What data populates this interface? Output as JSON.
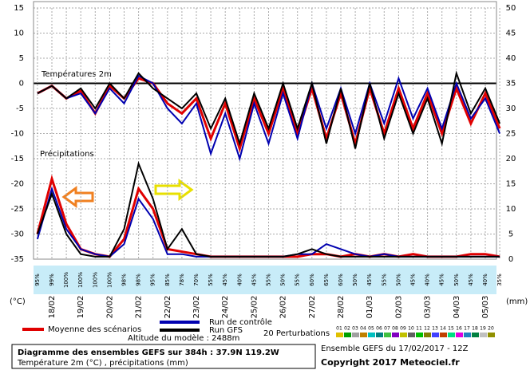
{
  "chart_data": {
    "type": "line",
    "annotations": [
      "Températures 2m",
      "Précipitations"
    ],
    "y_unit": "(°C)",
    "y2_unit": "(mm)",
    "categories": [
      null,
      "18/02",
      null,
      "19/02",
      null,
      "20/02",
      null,
      "21/02",
      null,
      "22/02",
      null,
      "23/02",
      null,
      "24/02",
      null,
      "25/02",
      null,
      "26/02",
      null,
      "27/02",
      null,
      "28/02",
      null,
      "01/03",
      null,
      "02/03",
      null,
      "03/03",
      null,
      "04/03",
      null,
      "05/03",
      null
    ],
    "probabilities": [
      "95%",
      "99%",
      "100%",
      "100%",
      "100%",
      "100%",
      "98%",
      "98%",
      "95%",
      "85%",
      "78%",
      "70%",
      "55%",
      "45%",
      "40%",
      "45%",
      "55%",
      "50%",
      "55%",
      "60%",
      "65%",
      "60%",
      "50%",
      "45%",
      "55%",
      "50%",
      "45%",
      "40%",
      "45%",
      "50%",
      "45%",
      "40%",
      "35%"
    ],
    "ylim": [
      -35,
      15
    ],
    "yticks": [
      15,
      10,
      5,
      0,
      -5,
      -10,
      -15,
      -20,
      -25,
      -30,
      -35
    ],
    "y2lim": [
      0,
      50
    ],
    "y2ticks": [
      50,
      45,
      40,
      35,
      30,
      25,
      20,
      15,
      10,
      5,
      0
    ],
    "grid": true,
    "series": [
      {
        "name": "Moyenne des scénarios",
        "color": "#e00000",
        "values": [
          -2,
          -0.5,
          -3,
          -1.5,
          -6,
          -0.5,
          -3,
          1,
          0,
          -4,
          -6,
          -3,
          -11,
          -4,
          -13,
          -3,
          -10,
          -1,
          -10,
          -1,
          -11,
          -2,
          -12,
          -1,
          -10,
          -1,
          -9,
          -2,
          -10,
          -1,
          -8,
          -2,
          -9
        ]
      },
      {
        "name": "Run de contrôle",
        "color": "#0000b0",
        "values": [
          -2,
          -0.5,
          -3,
          -2,
          -6,
          -1,
          -4,
          1.5,
          0,
          -5,
          -8,
          -4,
          -14,
          -6,
          -15,
          -4,
          -12,
          -2,
          -11,
          0,
          -9,
          -1,
          -10,
          0,
          -8,
          1,
          -7,
          -1,
          -9,
          0,
          -7,
          -3,
          -10
        ]
      },
      {
        "name": "Run GFS",
        "color": "#000000",
        "values": [
          -2,
          -0.5,
          -3,
          -1,
          -5,
          0,
          -3,
          2,
          -1,
          -3,
          -5,
          -2,
          -9,
          -3,
          -12,
          -2,
          -9,
          0,
          -9,
          0,
          -12,
          -1,
          -13,
          0,
          -11,
          -2,
          -10,
          -3,
          -12,
          2,
          -6,
          -1,
          -8
        ]
      },
      {
        "name": "Moyenne des scénarios",
        "color": "#e00000",
        "axis": "y2",
        "values": [
          5,
          16,
          7,
          2,
          1,
          0.5,
          4,
          14,
          10,
          2,
          1.5,
          1,
          0.5,
          0.5,
          0.5,
          0.5,
          0.5,
          0.5,
          0.5,
          1,
          1,
          0.5,
          1,
          0.5,
          1,
          0.5,
          1,
          0.5,
          0.5,
          0.5,
          1,
          1,
          0.5
        ]
      },
      {
        "name": "Run de contrôle",
        "color": "#0000b0",
        "axis": "y2",
        "values": [
          4,
          14,
          6,
          2,
          1,
          0.5,
          3,
          12,
          8,
          1,
          1,
          0.5,
          0.5,
          0.5,
          0.5,
          0.5,
          0.5,
          0.5,
          1,
          1,
          3,
          2,
          1,
          0.5,
          1,
          0.5,
          0.5,
          0.5,
          0.5,
          0.5,
          0.5,
          0.5,
          0.5
        ]
      },
      {
        "name": "Run GFS",
        "color": "#000000",
        "axis": "y2",
        "values": [
          5,
          13,
          5,
          1,
          0.5,
          0.5,
          6,
          19,
          12,
          2,
          6,
          1,
          0.5,
          0.5,
          0.5,
          0.5,
          0.5,
          0.5,
          1,
          2,
          1,
          0.5,
          0.5,
          0.5,
          0.5,
          0.5,
          0.5,
          0.5,
          0.5,
          0.5,
          0.5,
          0.5,
          0.5
        ]
      }
    ],
    "perturbations_label": "20 Perturbations",
    "perturbations": [
      {
        "label": "01",
        "color": "#e0c000"
      },
      {
        "label": "02",
        "color": "#00a000"
      },
      {
        "label": "03",
        "color": "#a0a0a0"
      },
      {
        "label": "04",
        "color": "#c08000"
      },
      {
        "label": "05",
        "color": "#00c0c0"
      },
      {
        "label": "06",
        "color": "#008080"
      },
      {
        "label": "07",
        "color": "#40c040"
      },
      {
        "label": "08",
        "color": "#8000c0"
      },
      {
        "label": "09",
        "color": "#c0c000"
      },
      {
        "label": "10",
        "color": "#606060"
      },
      {
        "label": "11",
        "color": "#00c000"
      },
      {
        "label": "12",
        "color": "#808000"
      },
      {
        "label": "13",
        "color": "#4040ff"
      },
      {
        "label": "14",
        "color": "#c04000"
      },
      {
        "label": "15",
        "color": "#00e080"
      },
      {
        "label": "16",
        "color": "#e000e0"
      },
      {
        "label": "17",
        "color": "#2080c0"
      },
      {
        "label": "18",
        "color": "#008040"
      },
      {
        "label": "19",
        "color": "#c0c0c0"
      },
      {
        "label": "20",
        "color": "#909000"
      }
    ],
    "footer": {
      "title": "Diagramme des ensembles GEFS sur 384h : 37.9N 119.2W",
      "subtitle": "Température 2m (°C) , précipitations (mm)",
      "altitude": "Altitude du modèle : 2488m",
      "run": "Ensemble GEFS du 17/02/2017 - 12Z",
      "copyright": "Copyright 2017 Meteociel.fr"
    }
  }
}
